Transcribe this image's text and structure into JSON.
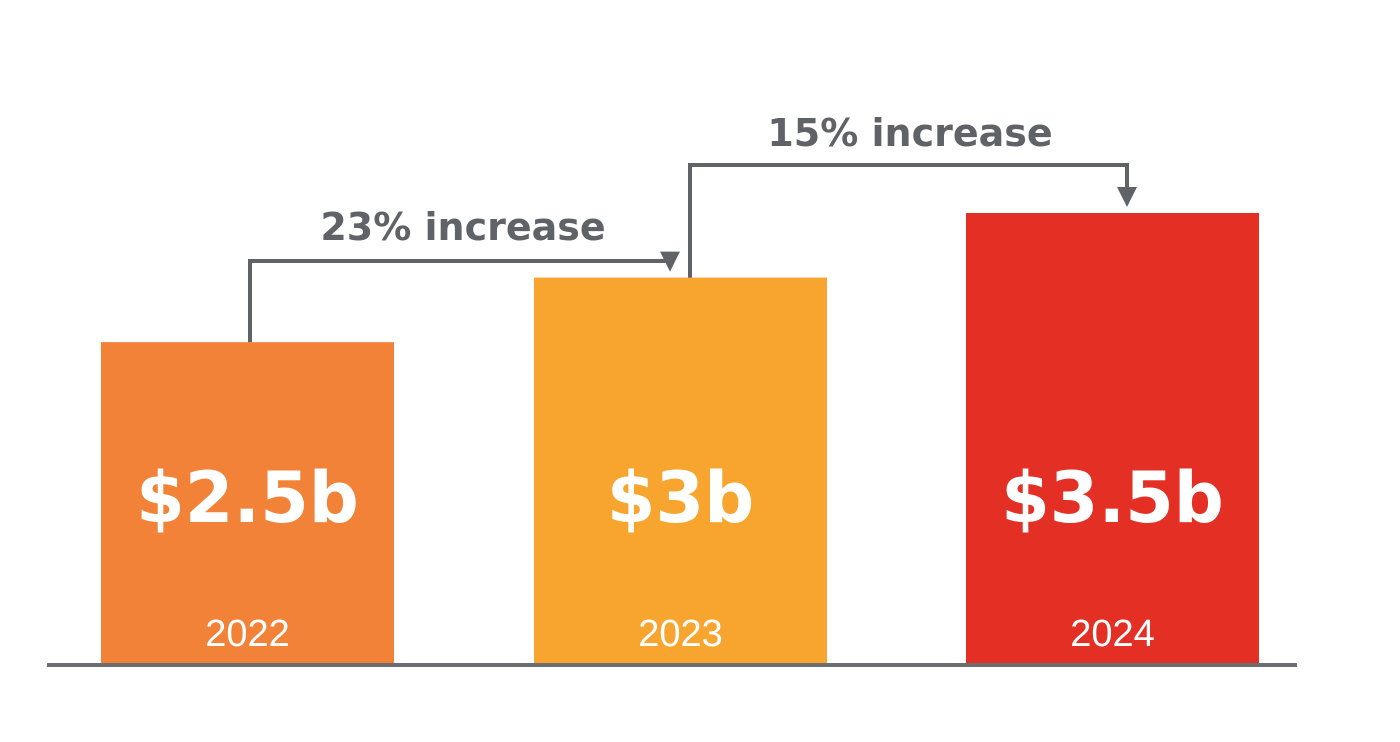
{
  "chart_data": {
    "type": "bar",
    "categories": [
      "2022",
      "2023",
      "2024"
    ],
    "values": [
      2.5,
      3,
      3.5
    ],
    "value_labels": [
      "$2.5b",
      "$3b",
      "$3.5b"
    ],
    "ylim": [
      0,
      3.5
    ],
    "grid": false,
    "colors": {
      "bars": [
        "#F28238",
        "#F8A530",
        "#E42F24"
      ],
      "annotation": "#5F6368",
      "baseline": "#6D6E71",
      "label_text": "#FFFFFF"
    },
    "annotations": [
      {
        "from": "2022",
        "to": "2023",
        "label": "23% increase"
      },
      {
        "from": "2023",
        "to": "2024",
        "label": "15% increase"
      }
    ]
  }
}
